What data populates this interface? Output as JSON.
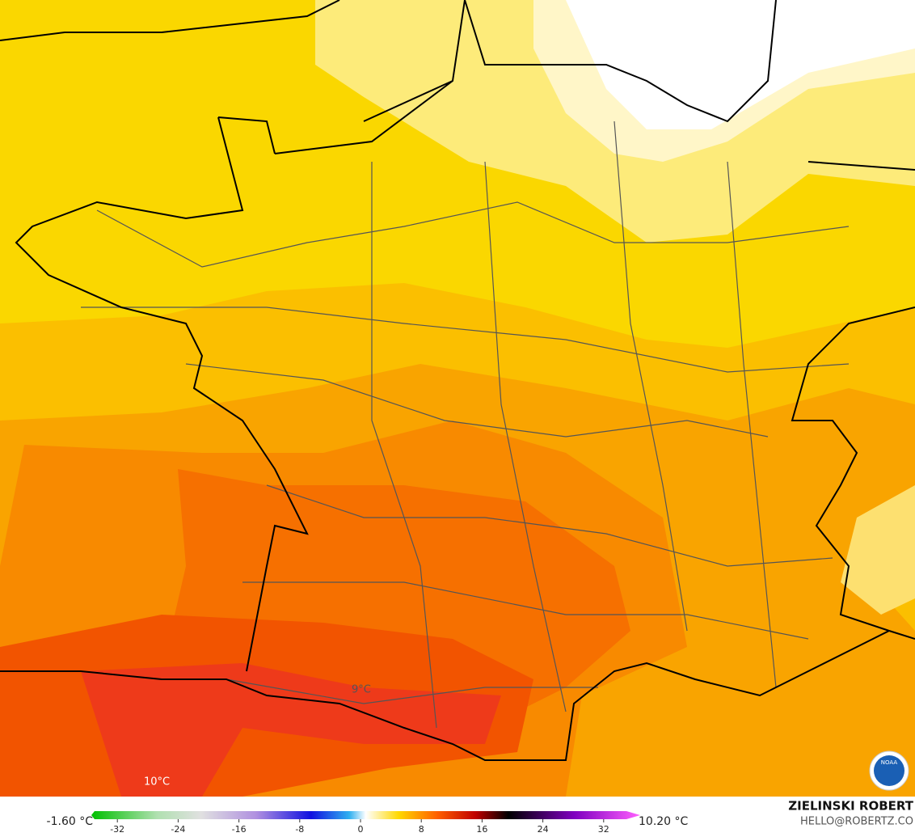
{
  "map": {
    "annotations": [
      {
        "label": "9°C"
      },
      {
        "label": "10°C"
      }
    ],
    "logo": "NOAA",
    "colorbar": {
      "min_label": "-1.60 °C",
      "max_label": "10.20 °C",
      "lim": [
        -35,
        35
      ],
      "ticks": [
        -32,
        -24,
        -16,
        -8,
        0,
        8,
        16,
        24,
        32
      ]
    },
    "credits": {
      "author": "ZIELINSKI ROBERT",
      "email": "HELLO@ROBERTZ.CO"
    }
  }
}
